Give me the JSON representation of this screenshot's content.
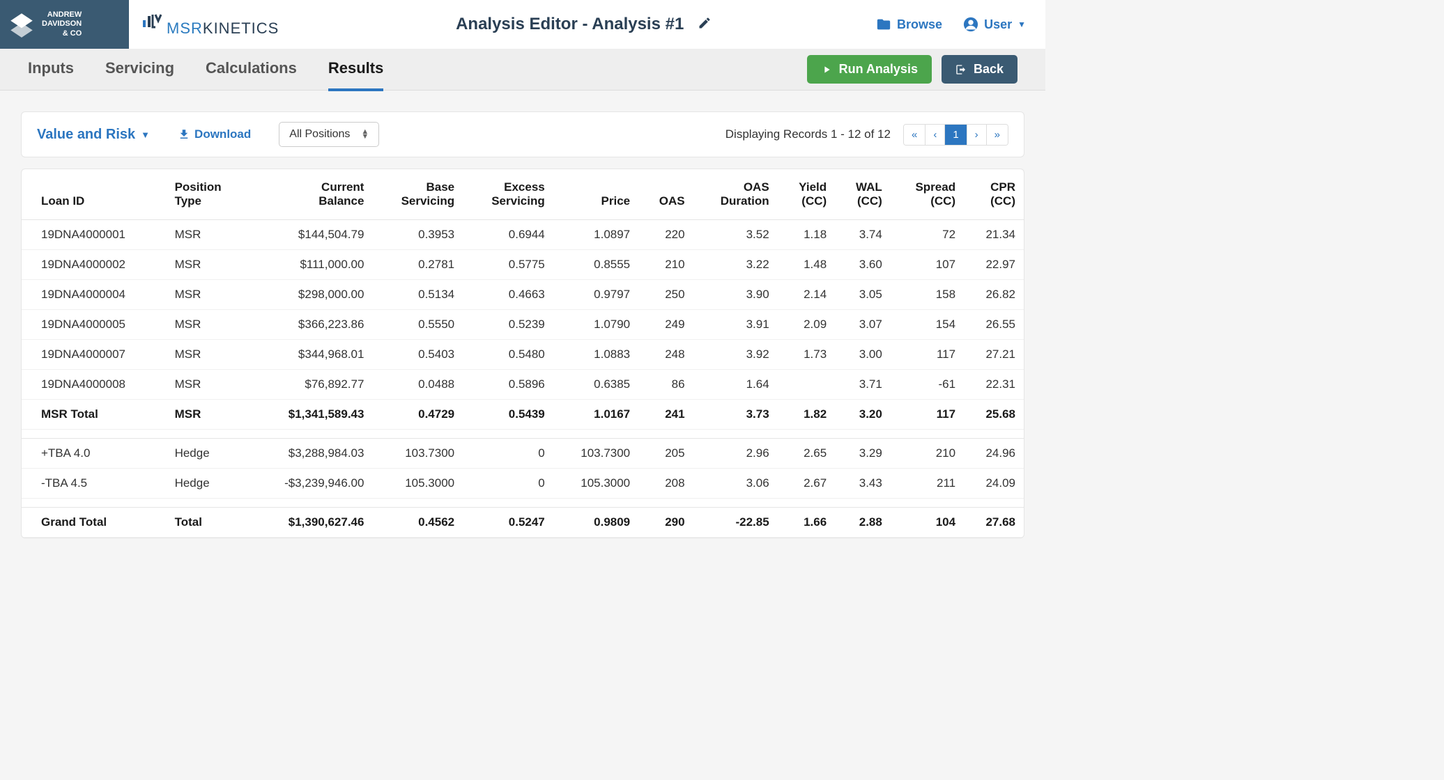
{
  "logo": {
    "line1": "ANDREW",
    "line2": "DAVIDSON",
    "line3": "& CO"
  },
  "brand": {
    "msr": "MSR",
    "kinetics": "KINETICS"
  },
  "page_title": "Analysis Editor - Analysis #1",
  "header": {
    "browse": "Browse",
    "user": "User"
  },
  "tabs": {
    "inputs": "Inputs",
    "servicing": "Servicing",
    "calculations": "Calculations",
    "results": "Results"
  },
  "actions": {
    "run": "Run Analysis",
    "back": "Back"
  },
  "toolbar": {
    "view": "Value and Risk",
    "download": "Download",
    "filter": "All Positions",
    "records": "Displaying Records 1 - 12 of 12",
    "page": "1",
    "first": "«",
    "prev": "‹",
    "next": "›",
    "last": "»"
  },
  "columns": {
    "c0": "Loan ID",
    "c1": "Position\nType",
    "c2": "Current\nBalance",
    "c3": "Base\nServicing",
    "c4": "Excess\nServicing",
    "c5": "Price",
    "c6": "OAS",
    "c7": "OAS\nDuration",
    "c8": "Yield\n(CC)",
    "c9": "WAL\n(CC)",
    "c10": "Spread\n(CC)",
    "c11": "CPR\n(CC)"
  },
  "rows": [
    {
      "bold": false,
      "c0": "19DNA4000001",
      "c1": "MSR",
      "c2": "$144,504.79",
      "c3": "0.3953",
      "c4": "0.6944",
      "c5": "1.0897",
      "c6": "220",
      "c7": "3.52",
      "c8": "1.18",
      "c9": "3.74",
      "c10": "72",
      "c11": "21.34"
    },
    {
      "bold": false,
      "c0": "19DNA4000002",
      "c1": "MSR",
      "c2": "$111,000.00",
      "c3": "0.2781",
      "c4": "0.5775",
      "c5": "0.8555",
      "c6": "210",
      "c7": "3.22",
      "c8": "1.48",
      "c9": "3.60",
      "c10": "107",
      "c11": "22.97"
    },
    {
      "bold": false,
      "c0": "19DNA4000004",
      "c1": "MSR",
      "c2": "$298,000.00",
      "c3": "0.5134",
      "c4": "0.4663",
      "c5": "0.9797",
      "c6": "250",
      "c7": "3.90",
      "c8": "2.14",
      "c9": "3.05",
      "c10": "158",
      "c11": "26.82"
    },
    {
      "bold": false,
      "c0": "19DNA4000005",
      "c1": "MSR",
      "c2": "$366,223.86",
      "c3": "0.5550",
      "c4": "0.5239",
      "c5": "1.0790",
      "c6": "249",
      "c7": "3.91",
      "c8": "2.09",
      "c9": "3.07",
      "c10": "154",
      "c11": "26.55"
    },
    {
      "bold": false,
      "c0": "19DNA4000007",
      "c1": "MSR",
      "c2": "$344,968.01",
      "c3": "0.5403",
      "c4": "0.5480",
      "c5": "1.0883",
      "c6": "248",
      "c7": "3.92",
      "c8": "1.73",
      "c9": "3.00",
      "c10": "117",
      "c11": "27.21"
    },
    {
      "bold": false,
      "c0": "19DNA4000008",
      "c1": "MSR",
      "c2": "$76,892.77",
      "c3": "0.0488",
      "c4": "0.5896",
      "c5": "0.6385",
      "c6": "86",
      "c7": "1.64",
      "c8": "",
      "c9": "3.71",
      "c10": "-61",
      "c11": "22.31"
    },
    {
      "bold": true,
      "c0": "MSR Total",
      "c1": "MSR",
      "c2": "$1,341,589.43",
      "c3": "0.4729",
      "c4": "0.5439",
      "c5": "1.0167",
      "c6": "241",
      "c7": "3.73",
      "c8": "1.82",
      "c9": "3.20",
      "c10": "117",
      "c11": "25.68"
    },
    {
      "spacer": true
    },
    {
      "bold": false,
      "c0": "+TBA 4.0",
      "c1": "Hedge",
      "c2": "$3,288,984.03",
      "c3": "103.7300",
      "c4": "0",
      "c5": "103.7300",
      "c6": "205",
      "c7": "2.96",
      "c8": "2.65",
      "c9": "3.29",
      "c10": "210",
      "c11": "24.96"
    },
    {
      "bold": false,
      "c0": "-TBA 4.5",
      "c1": "Hedge",
      "c2": "-$3,239,946.00",
      "c3": "105.3000",
      "c4": "0",
      "c5": "105.3000",
      "c6": "208",
      "c7": "3.06",
      "c8": "2.67",
      "c9": "3.43",
      "c10": "211",
      "c11": "24.09"
    },
    {
      "spacer": true
    },
    {
      "bold": true,
      "c0": "Grand Total",
      "c1": "Total",
      "c2": "$1,390,627.46",
      "c3": "0.4562",
      "c4": "0.5247",
      "c5": "0.9809",
      "c6": "290",
      "c7": "-22.85",
      "c8": "1.66",
      "c9": "2.88",
      "c10": "104",
      "c11": "27.68"
    }
  ]
}
